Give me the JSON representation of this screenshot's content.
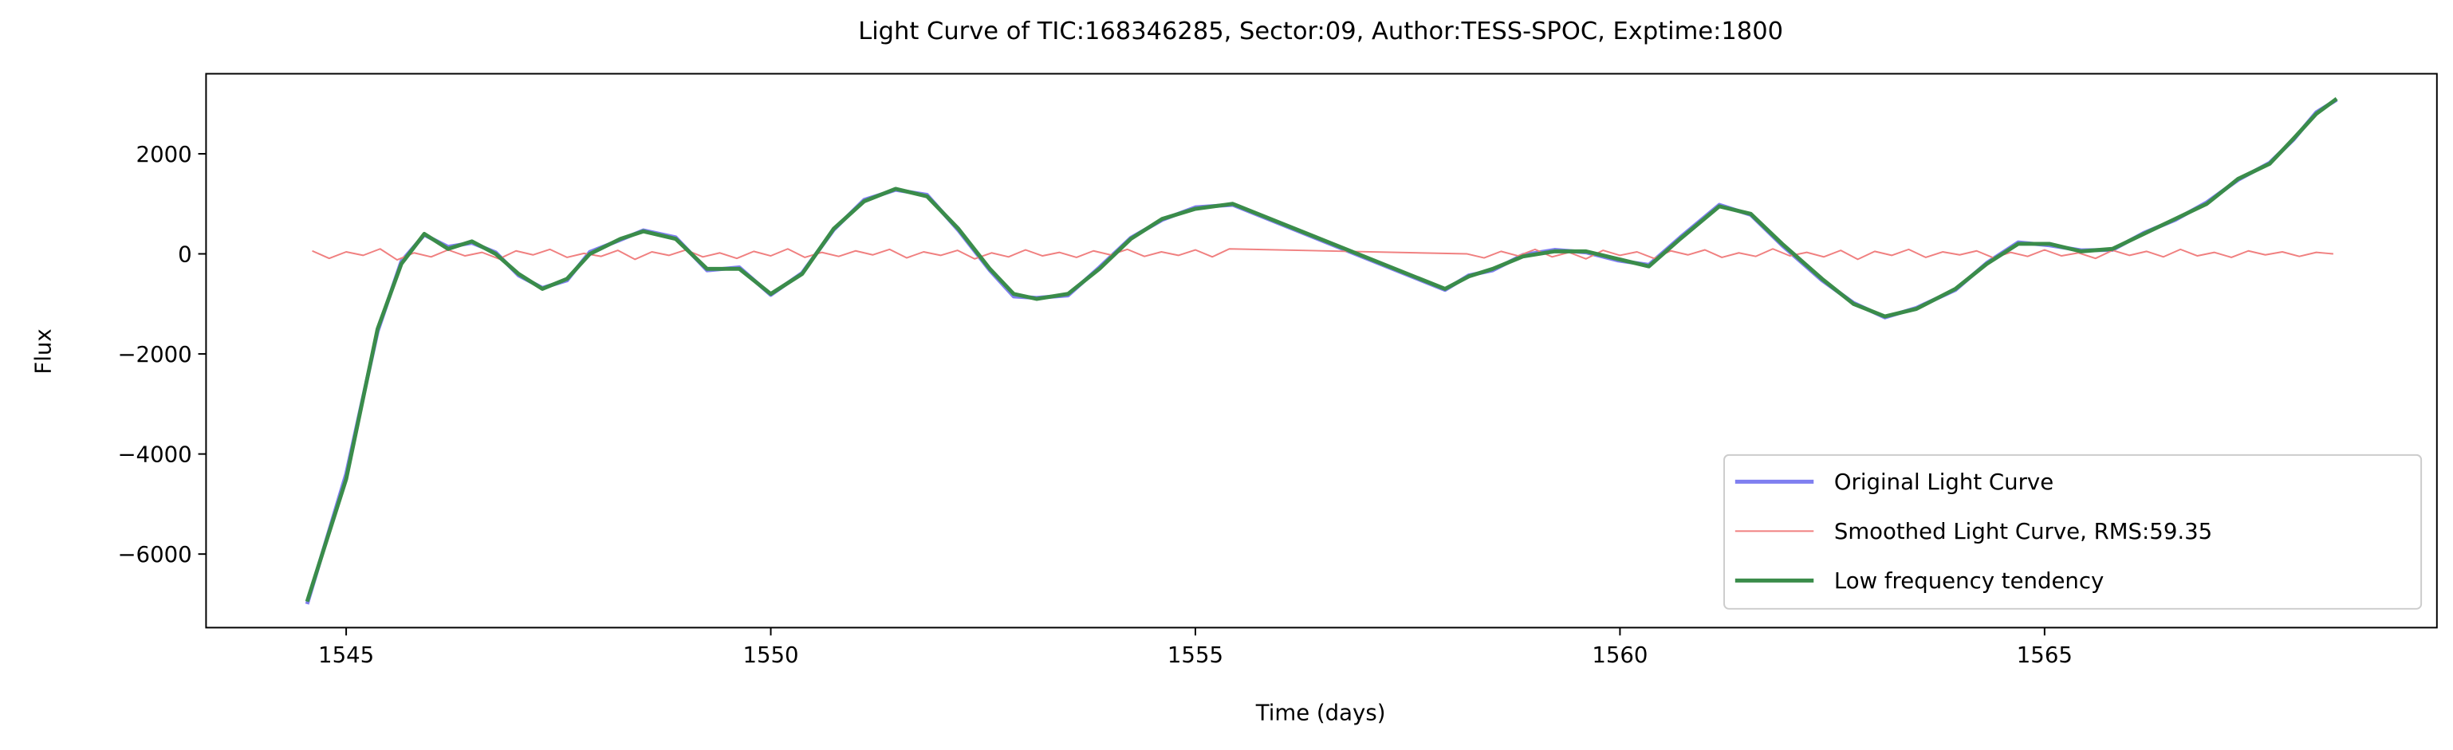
{
  "chart_data": {
    "type": "line",
    "title": "Light Curve of TIC:168346285, Sector:09, Author:TESS-SPOC, Exptime:1800",
    "xlabel": "Time (days)",
    "ylabel": "Flux",
    "xlim": [
      1543.35,
      1569.62
    ],
    "ylim": [
      -7470,
      3600
    ],
    "xticks": [
      1545,
      1550,
      1555,
      1560,
      1565
    ],
    "yticks": [
      {
        "value": 2000,
        "label": "2000"
      },
      0,
      {
        "value": -2000,
        "label": "−2000"
      },
      {
        "value": -4000,
        "label": "−4000"
      },
      {
        "value": -6000,
        "label": "−6000"
      }
    ],
    "legend": "lower right",
    "series": [
      {
        "name": "Original Light Curve",
        "color": "#7f7ff0",
        "x": [
          1544.54,
          1545.0,
          1545.37,
          1545.65,
          1545.92,
          1546.2,
          1546.48,
          1546.76,
          1547.03,
          1547.31,
          1547.6,
          1547.87,
          1548.23,
          1548.5,
          1548.88,
          1549.25,
          1549.63,
          1550.0,
          1550.37,
          1550.74,
          1551.1,
          1551.47,
          1551.84,
          1552.21,
          1552.58,
          1552.86,
          1553.13,
          1553.5,
          1553.87,
          1554.24,
          1554.61,
          1555.0,
          1555.44,
          1557.94,
          1558.22,
          1558.5,
          1558.86,
          1559.23,
          1559.6,
          1559.97,
          1560.34,
          1560.71,
          1561.17,
          1561.54,
          1561.91,
          1562.38,
          1562.75,
          1563.12,
          1563.49,
          1563.95,
          1564.32,
          1564.69,
          1565.06,
          1565.43,
          1565.8,
          1566.17,
          1566.54,
          1566.91,
          1567.28,
          1567.65,
          1567.93,
          1568.2,
          1568.44
        ],
        "values": [
          -7000,
          -4400,
          -1550,
          -150,
          380,
          140,
          220,
          30,
          -430,
          -680,
          -530,
          40,
          280,
          470,
          330,
          -330,
          -270,
          -820,
          -380,
          480,
          1080,
          1280,
          1180,
          470,
          -330,
          -850,
          -880,
          -830,
          -270,
          320,
          680,
          930,
          980,
          -720,
          -430,
          -330,
          -20,
          80,
          30,
          -130,
          -220,
          330,
          980,
          780,
          170,
          -530,
          -980,
          -1270,
          -1080,
          -720,
          -180,
          230,
          170,
          70,
          80,
          420,
          680,
          1030,
          1480,
          1820,
          2280,
          2830,
          3080
        ]
      },
      {
        "name": "Smoothed Light Curve, RMS:59.35",
        "color": "#f08080",
        "x": [
          1544.6,
          1544.8,
          1545.0,
          1545.2,
          1545.4,
          1545.6,
          1545.8,
          1546.0,
          1546.2,
          1546.4,
          1546.6,
          1546.8,
          1547.0,
          1547.2,
          1547.4,
          1547.6,
          1547.8,
          1548.0,
          1548.2,
          1548.4,
          1548.6,
          1548.8,
          1549.0,
          1549.2,
          1549.4,
          1549.6,
          1549.8,
          1550.0,
          1550.2,
          1550.4,
          1550.6,
          1550.8,
          1551.0,
          1551.2,
          1551.4,
          1551.6,
          1551.8,
          1552.0,
          1552.2,
          1552.4,
          1552.6,
          1552.8,
          1553.0,
          1553.2,
          1553.4,
          1553.6,
          1553.8,
          1554.0,
          1554.2,
          1554.4,
          1554.6,
          1554.8,
          1555.0,
          1555.2,
          1555.4,
          1558.2,
          1558.4,
          1558.6,
          1558.8,
          1559.0,
          1559.2,
          1559.4,
          1559.6,
          1559.8,
          1560.0,
          1560.2,
          1560.4,
          1560.6,
          1560.8,
          1561.0,
          1561.2,
          1561.4,
          1561.6,
          1561.8,
          1562.0,
          1562.2,
          1562.4,
          1562.6,
          1562.8,
          1563.0,
          1563.2,
          1563.4,
          1563.6,
          1563.8,
          1564.0,
          1564.2,
          1564.4,
          1564.6,
          1564.8,
          1565.0,
          1565.2,
          1565.4,
          1565.6,
          1565.8,
          1566.0,
          1566.2,
          1566.4,
          1566.6,
          1566.8,
          1567.0,
          1567.2,
          1567.4,
          1567.6,
          1567.8,
          1568.0,
          1568.2,
          1568.4
        ],
        "values": [
          60,
          -90,
          40,
          -30,
          100,
          -120,
          20,
          -60,
          80,
          -40,
          30,
          -100,
          60,
          -20,
          90,
          -70,
          10,
          -50,
          70,
          -110,
          40,
          -30,
          80,
          -60,
          20,
          -90,
          50,
          -40,
          100,
          -70,
          30,
          -50,
          60,
          -20,
          90,
          -80,
          40,
          -30,
          70,
          -100,
          20,
          -60,
          80,
          -40,
          30,
          -70,
          60,
          -20,
          90,
          -50,
          40,
          -30,
          80,
          -60,
          100,
          0,
          -80,
          50,
          -40,
          90,
          -60,
          30,
          -100,
          70,
          -30,
          40,
          -90,
          60,
          -20,
          80,
          -70,
          20,
          -50,
          100,
          -40,
          30,
          -60,
          70,
          -110,
          50,
          -30,
          90,
          -70,
          40,
          -20,
          60,
          -80,
          30,
          -50,
          80,
          -40,
          20,
          -90,
          70,
          -30,
          50,
          -60,
          90,
          -40,
          30,
          -70,
          60,
          -20,
          40,
          -50,
          30,
          0
        ]
      },
      {
        "name": "Low frequency tendency",
        "color": "#3a8c4a",
        "x": [
          1544.54,
          1545.0,
          1545.37,
          1545.65,
          1545.92,
          1546.2,
          1546.48,
          1546.76,
          1547.03,
          1547.31,
          1547.6,
          1547.87,
          1548.23,
          1548.5,
          1548.88,
          1549.25,
          1549.63,
          1550.0,
          1550.37,
          1550.74,
          1551.1,
          1551.47,
          1551.84,
          1552.21,
          1552.58,
          1552.86,
          1553.13,
          1553.5,
          1553.87,
          1554.24,
          1554.61,
          1555.0,
          1555.44,
          1557.94,
          1558.22,
          1558.5,
          1558.86,
          1559.23,
          1559.6,
          1559.97,
          1560.34,
          1560.71,
          1561.17,
          1561.54,
          1561.91,
          1562.38,
          1562.75,
          1563.12,
          1563.49,
          1563.95,
          1564.32,
          1564.69,
          1565.06,
          1565.43,
          1565.8,
          1566.17,
          1566.54,
          1566.91,
          1567.28,
          1567.65,
          1567.93,
          1568.2,
          1568.44
        ],
        "values": [
          -6950,
          -4500,
          -1500,
          -200,
          400,
          100,
          250,
          0,
          -400,
          -700,
          -500,
          0,
          300,
          450,
          300,
          -300,
          -300,
          -800,
          -400,
          500,
          1050,
          1300,
          1150,
          500,
          -300,
          -800,
          -900,
          -800,
          -300,
          300,
          700,
          900,
          1000,
          -700,
          -450,
          -300,
          -50,
          50,
          50,
          -100,
          -250,
          300,
          950,
          800,
          200,
          -500,
          -1000,
          -1250,
          -1100,
          -700,
          -200,
          200,
          200,
          50,
          100,
          400,
          700,
          1000,
          1500,
          1800,
          2300,
          2800,
          3100
        ]
      }
    ]
  }
}
